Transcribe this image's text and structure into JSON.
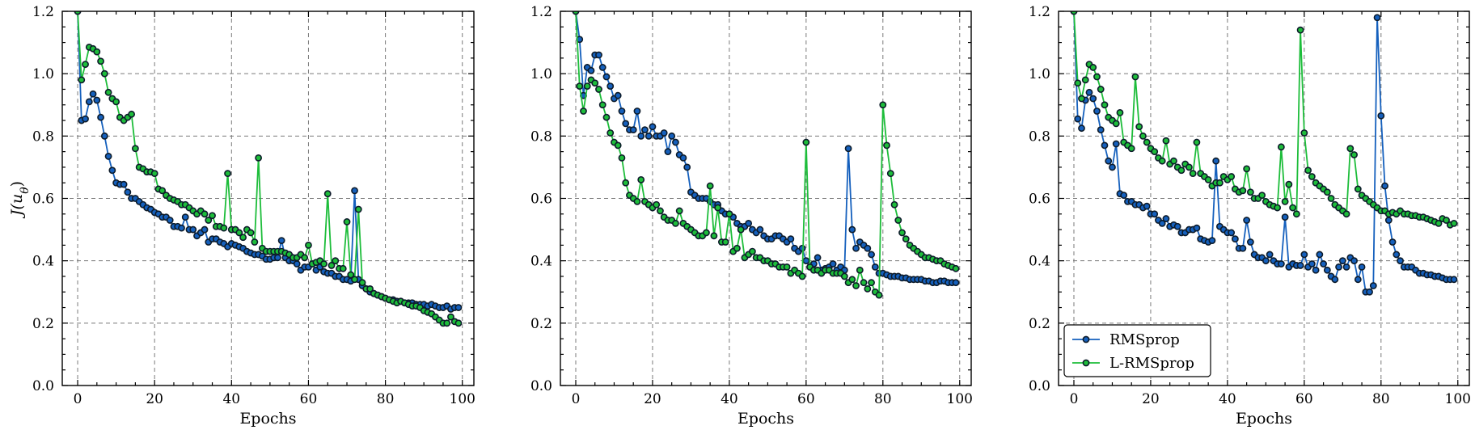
{
  "chart_data": [
    {
      "type": "line",
      "xlabel": "Epochs",
      "ylabel": "J(u_θ)",
      "xlim": [
        -4,
        103
      ],
      "ylim": [
        0.0,
        1.2
      ],
      "xticks": [
        0,
        20,
        40,
        60,
        80,
        100
      ],
      "yticks": [
        0.0,
        0.2,
        0.4,
        0.6,
        0.8,
        1.0,
        1.2
      ],
      "grid": true,
      "series": [
        {
          "name": "RMSprop",
          "color": "#1560bd",
          "values": [
            1.2,
            0.85,
            0.855,
            0.91,
            0.935,
            0.915,
            0.86,
            0.8,
            0.735,
            0.69,
            0.65,
            0.645,
            0.645,
            0.62,
            0.6,
            0.6,
            0.59,
            0.58,
            0.57,
            0.565,
            0.555,
            0.55,
            0.54,
            0.54,
            0.53,
            0.51,
            0.51,
            0.505,
            0.54,
            0.5,
            0.5,
            0.48,
            0.49,
            0.5,
            0.46,
            0.47,
            0.47,
            0.46,
            0.455,
            0.445,
            0.455,
            0.45,
            0.445,
            0.44,
            0.43,
            0.425,
            0.42,
            0.42,
            0.415,
            0.405,
            0.405,
            0.41,
            0.41,
            0.465,
            0.41,
            0.4,
            0.4,
            0.39,
            0.37,
            0.38,
            0.38,
            0.39,
            0.37,
            0.38,
            0.365,
            0.36,
            0.36,
            0.35,
            0.35,
            0.34,
            0.34,
            0.335,
            0.625,
            0.34,
            0.32,
            0.31,
            0.3,
            0.295,
            0.29,
            0.285,
            0.28,
            0.275,
            0.275,
            0.27,
            0.27,
            0.265,
            0.265,
            0.265,
            0.26,
            0.26,
            0.26,
            0.255,
            0.26,
            0.255,
            0.25,
            0.25,
            0.255,
            0.245,
            0.25,
            0.25
          ]
        },
        {
          "name": "L-RMSprop",
          "color": "#1dbd3a",
          "values": [
            1.2,
            0.98,
            1.03,
            1.085,
            1.08,
            1.07,
            1.04,
            1.0,
            0.94,
            0.92,
            0.91,
            0.86,
            0.85,
            0.86,
            0.87,
            0.76,
            0.7,
            0.695,
            0.685,
            0.685,
            0.68,
            0.63,
            0.625,
            0.61,
            0.6,
            0.595,
            0.59,
            0.58,
            0.58,
            0.57,
            0.56,
            0.55,
            0.56,
            0.55,
            0.53,
            0.545,
            0.51,
            0.51,
            0.505,
            0.68,
            0.5,
            0.5,
            0.49,
            0.475,
            0.5,
            0.49,
            0.46,
            0.73,
            0.44,
            0.43,
            0.43,
            0.43,
            0.43,
            0.43,
            0.425,
            0.42,
            0.41,
            0.41,
            0.42,
            0.41,
            0.45,
            0.39,
            0.395,
            0.4,
            0.39,
            0.615,
            0.385,
            0.4,
            0.375,
            0.375,
            0.525,
            0.355,
            0.34,
            0.565,
            0.33,
            0.31,
            0.31,
            0.295,
            0.29,
            0.285,
            0.28,
            0.275,
            0.27,
            0.265,
            0.27,
            0.265,
            0.26,
            0.255,
            0.255,
            0.25,
            0.24,
            0.235,
            0.23,
            0.22,
            0.21,
            0.2,
            0.2,
            0.22,
            0.205,
            0.2
          ]
        }
      ]
    },
    {
      "type": "line",
      "xlabel": "Epochs",
      "ylabel": "",
      "xlim": [
        -4,
        103
      ],
      "ylim": [
        0.0,
        1.2
      ],
      "xticks": [
        0,
        20,
        40,
        60,
        80,
        100
      ],
      "yticks": [
        0.0,
        0.2,
        0.4,
        0.6,
        0.8,
        1.0,
        1.2
      ],
      "grid": true,
      "series": [
        {
          "name": "RMSprop",
          "color": "#1560bd",
          "values": [
            1.2,
            1.11,
            0.93,
            1.02,
            1.01,
            1.06,
            1.06,
            1.02,
            0.99,
            0.96,
            0.92,
            0.93,
            0.88,
            0.84,
            0.82,
            0.82,
            0.88,
            0.8,
            0.82,
            0.8,
            0.83,
            0.8,
            0.8,
            0.81,
            0.75,
            0.8,
            0.78,
            0.74,
            0.73,
            0.7,
            0.62,
            0.61,
            0.6,
            0.6,
            0.6,
            0.59,
            0.58,
            0.58,
            0.56,
            0.55,
            0.55,
            0.54,
            0.52,
            0.51,
            0.51,
            0.52,
            0.5,
            0.49,
            0.5,
            0.48,
            0.47,
            0.47,
            0.48,
            0.48,
            0.47,
            0.46,
            0.47,
            0.44,
            0.43,
            0.44,
            0.4,
            0.38,
            0.39,
            0.41,
            0.37,
            0.375,
            0.38,
            0.39,
            0.37,
            0.38,
            0.37,
            0.76,
            0.5,
            0.44,
            0.46,
            0.45,
            0.44,
            0.42,
            0.38,
            0.36,
            0.36,
            0.355,
            0.35,
            0.35,
            0.35,
            0.345,
            0.345,
            0.34,
            0.34,
            0.34,
            0.34,
            0.335,
            0.335,
            0.33,
            0.33,
            0.335,
            0.335,
            0.33,
            0.33,
            0.33
          ]
        },
        {
          "name": "L-RMSprop",
          "color": "#1dbd3a",
          "values": [
            1.2,
            0.96,
            0.88,
            0.96,
            0.98,
            0.97,
            0.95,
            0.9,
            0.86,
            0.81,
            0.78,
            0.77,
            0.73,
            0.65,
            0.61,
            0.6,
            0.59,
            0.66,
            0.59,
            0.58,
            0.57,
            0.58,
            0.56,
            0.54,
            0.53,
            0.53,
            0.52,
            0.56,
            0.52,
            0.51,
            0.5,
            0.49,
            0.48,
            0.48,
            0.49,
            0.64,
            0.48,
            0.57,
            0.46,
            0.46,
            0.55,
            0.43,
            0.44,
            0.5,
            0.41,
            0.42,
            0.43,
            0.41,
            0.41,
            0.4,
            0.4,
            0.39,
            0.39,
            0.38,
            0.38,
            0.38,
            0.36,
            0.37,
            0.36,
            0.35,
            0.78,
            0.38,
            0.37,
            0.37,
            0.36,
            0.37,
            0.37,
            0.36,
            0.36,
            0.36,
            0.35,
            0.33,
            0.34,
            0.32,
            0.37,
            0.33,
            0.31,
            0.33,
            0.3,
            0.29,
            0.9,
            0.77,
            0.68,
            0.58,
            0.53,
            0.49,
            0.47,
            0.45,
            0.44,
            0.43,
            0.42,
            0.41,
            0.41,
            0.405,
            0.4,
            0.4,
            0.39,
            0.385,
            0.38,
            0.375
          ]
        }
      ]
    },
    {
      "type": "line",
      "xlabel": "Epochs",
      "ylabel": "",
      "xlim": [
        -4,
        103
      ],
      "ylim": [
        0.0,
        1.2
      ],
      "xticks": [
        0,
        20,
        40,
        60,
        80,
        100
      ],
      "yticks": [
        0.0,
        0.2,
        0.4,
        0.6,
        0.8,
        1.0,
        1.2
      ],
      "grid": true,
      "legend": "lower-left",
      "series": [
        {
          "name": "RMSprop",
          "color": "#1560bd",
          "values": [
            1.2,
            0.855,
            0.825,
            0.915,
            0.94,
            0.92,
            0.88,
            0.82,
            0.77,
            0.72,
            0.7,
            0.775,
            0.615,
            0.61,
            0.59,
            0.59,
            0.58,
            0.58,
            0.57,
            0.575,
            0.55,
            0.55,
            0.53,
            0.52,
            0.535,
            0.51,
            0.515,
            0.51,
            0.49,
            0.49,
            0.5,
            0.5,
            0.505,
            0.47,
            0.465,
            0.46,
            0.465,
            0.72,
            0.51,
            0.5,
            0.49,
            0.49,
            0.47,
            0.44,
            0.44,
            0.53,
            0.46,
            0.42,
            0.41,
            0.41,
            0.4,
            0.42,
            0.4,
            0.39,
            0.39,
            0.54,
            0.38,
            0.39,
            0.385,
            0.385,
            0.42,
            0.38,
            0.39,
            0.37,
            0.42,
            0.39,
            0.37,
            0.35,
            0.34,
            0.38,
            0.4,
            0.38,
            0.41,
            0.4,
            0.34,
            0.38,
            0.3,
            0.3,
            0.32,
            1.18,
            0.865,
            0.64,
            0.53,
            0.46,
            0.42,
            0.4,
            0.38,
            0.38,
            0.38,
            0.37,
            0.36,
            0.36,
            0.355,
            0.355,
            0.35,
            0.35,
            0.345,
            0.34,
            0.34,
            0.34
          ]
        },
        {
          "name": "L-RMSprop",
          "color": "#1dbd3a",
          "values": [
            1.2,
            0.97,
            0.92,
            0.98,
            1.03,
            1.02,
            0.99,
            0.95,
            0.9,
            0.86,
            0.85,
            0.84,
            0.875,
            0.78,
            0.77,
            0.76,
            0.99,
            0.83,
            0.8,
            0.78,
            0.76,
            0.75,
            0.73,
            0.72,
            0.785,
            0.71,
            0.72,
            0.7,
            0.69,
            0.71,
            0.7,
            0.68,
            0.78,
            0.68,
            0.67,
            0.66,
            0.64,
            0.65,
            0.65,
            0.67,
            0.66,
            0.67,
            0.63,
            0.62,
            0.625,
            0.695,
            0.62,
            0.6,
            0.6,
            0.61,
            0.59,
            0.58,
            0.575,
            0.57,
            0.765,
            0.59,
            0.645,
            0.57,
            0.55,
            1.14,
            0.81,
            0.69,
            0.67,
            0.65,
            0.64,
            0.63,
            0.62,
            0.6,
            0.58,
            0.57,
            0.56,
            0.55,
            0.76,
            0.74,
            0.63,
            0.61,
            0.6,
            0.59,
            0.58,
            0.57,
            0.56,
            0.56,
            0.55,
            0.555,
            0.55,
            0.56,
            0.55,
            0.55,
            0.545,
            0.545,
            0.54,
            0.54,
            0.535,
            0.53,
            0.525,
            0.52,
            0.535,
            0.53,
            0.515,
            0.52
          ]
        }
      ]
    }
  ]
}
